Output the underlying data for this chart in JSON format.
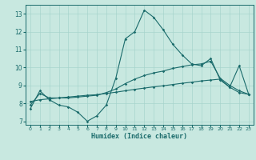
{
  "xlabel": "Humidex (Indice chaleur)",
  "ylabel": "",
  "xlim": [
    -0.5,
    23.5
  ],
  "ylim": [
    6.8,
    13.5
  ],
  "yticks": [
    7,
    8,
    9,
    10,
    11,
    12,
    13
  ],
  "xticks": [
    0,
    1,
    2,
    3,
    4,
    5,
    6,
    7,
    8,
    9,
    10,
    11,
    12,
    13,
    14,
    15,
    16,
    17,
    18,
    19,
    20,
    21,
    22,
    23
  ],
  "bg_color": "#c8e8e0",
  "line_color": "#1a6b6b",
  "line1": {
    "x": [
      0,
      1,
      2,
      3,
      4,
      5,
      6,
      7,
      8,
      9,
      10,
      11,
      12,
      13,
      14,
      15,
      16,
      17,
      18,
      19,
      20,
      21,
      22,
      23
    ],
    "y": [
      7.7,
      8.7,
      8.2,
      7.9,
      7.8,
      7.5,
      7.0,
      7.3,
      7.9,
      9.4,
      11.6,
      12.0,
      13.2,
      12.8,
      12.1,
      11.3,
      10.7,
      10.2,
      10.1,
      10.5,
      9.3,
      8.9,
      10.1,
      8.5
    ]
  },
  "line2": {
    "x": [
      0,
      1,
      2,
      3,
      4,
      5,
      6,
      7,
      8,
      9,
      10,
      11,
      12,
      13,
      14,
      15,
      16,
      17,
      18,
      19,
      20,
      21,
      22,
      23
    ],
    "y": [
      7.9,
      8.55,
      8.3,
      8.3,
      8.3,
      8.35,
      8.4,
      8.45,
      8.6,
      8.8,
      9.1,
      9.35,
      9.55,
      9.7,
      9.8,
      9.95,
      10.05,
      10.15,
      10.2,
      10.35,
      9.4,
      9.0,
      8.7,
      8.5
    ]
  },
  "line3": {
    "x": [
      0,
      1,
      2,
      3,
      4,
      5,
      6,
      7,
      8,
      9,
      10,
      11,
      12,
      13,
      14,
      15,
      16,
      17,
      18,
      19,
      20,
      21,
      22,
      23
    ],
    "y": [
      8.1,
      8.2,
      8.25,
      8.3,
      8.35,
      8.4,
      8.45,
      8.48,
      8.55,
      8.62,
      8.7,
      8.78,
      8.85,
      8.92,
      8.98,
      9.05,
      9.12,
      9.18,
      9.25,
      9.3,
      9.35,
      8.9,
      8.6,
      8.5
    ]
  }
}
